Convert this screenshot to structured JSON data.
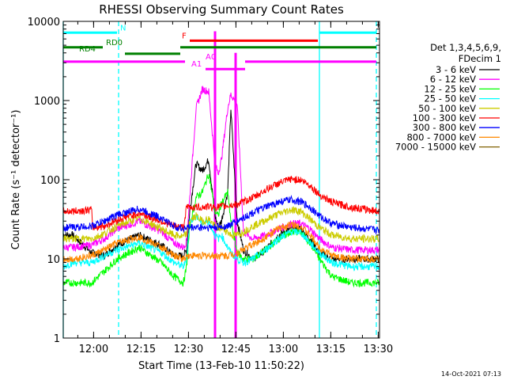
{
  "chart_data": {
    "type": "line",
    "title": "RHESSI Observing Summary Count Rates",
    "xlabel": "Start Time (13-Feb-10 11:50:22)",
    "ylabel": "Count Rate (s⁻¹ detector⁻¹)",
    "y_scale": "log",
    "ylim": [
      1,
      10000
    ],
    "xlim_minutes": [
      0,
      100
    ],
    "x_unit": "minutes since 11:50:22",
    "x_ticks": [
      {
        "label": "12:00",
        "value": 9.6
      },
      {
        "label": "12:15",
        "value": 24.6
      },
      {
        "label": "12:30",
        "value": 39.6
      },
      {
        "label": "12:45",
        "value": 54.6
      },
      {
        "label": "13:00",
        "value": 69.6
      },
      {
        "label": "13:15",
        "value": 84.6
      },
      {
        "label": "13:30",
        "value": 99.6
      }
    ],
    "y_ticks": [
      {
        "label": "1",
        "value": 1
      },
      {
        "label": "10",
        "value": 10
      },
      {
        "label": "100",
        "value": 100
      },
      {
        "label": "1000",
        "value": 1000
      },
      {
        "label": "10000",
        "value": 10000
      }
    ],
    "legend": {
      "placement": "right",
      "header1": "Det 1,3,4,5,6,9,",
      "header2": "FDecim 1"
    },
    "series": [
      {
        "name": "3 - 6 keV",
        "color": "#000000",
        "points": [
          [
            0,
            20
          ],
          [
            3,
            20
          ],
          [
            9,
            12
          ],
          [
            13,
            11
          ],
          [
            17,
            15
          ],
          [
            24,
            20
          ],
          [
            31,
            15
          ],
          [
            35,
            11
          ],
          [
            38,
            11
          ],
          [
            39,
            13
          ],
          [
            40,
            40
          ],
          [
            42,
            160
          ],
          [
            44,
            130
          ],
          [
            46,
            180
          ],
          [
            48,
            35
          ],
          [
            49,
            25
          ],
          [
            50,
            30
          ],
          [
            52,
            70
          ],
          [
            53,
            800
          ],
          [
            55,
            30
          ],
          [
            57,
            13
          ],
          [
            60,
            10
          ],
          [
            64,
            13
          ],
          [
            68,
            20
          ],
          [
            72,
            24
          ],
          [
            75,
            24
          ],
          [
            78,
            18
          ],
          [
            81,
            12
          ],
          [
            85,
            10
          ],
          [
            91,
            10
          ],
          [
            100,
            10
          ]
        ]
      },
      {
        "name": "6 - 12 keV",
        "color": "#ff00ff",
        "points": [
          [
            0,
            14
          ],
          [
            3,
            14
          ],
          [
            9,
            15
          ],
          [
            13,
            18
          ],
          [
            17,
            24
          ],
          [
            24,
            30
          ],
          [
            31,
            22
          ],
          [
            35,
            16
          ],
          [
            38,
            14
          ],
          [
            39,
            17
          ],
          [
            40,
            60
          ],
          [
            42,
            800
          ],
          [
            44,
            1400
          ],
          [
            46,
            1300
          ],
          [
            48,
            160
          ],
          [
            49,
            120
          ],
          [
            50,
            180
          ],
          [
            52,
            800
          ],
          [
            53,
            1200
          ],
          [
            55,
            900
          ],
          [
            57,
            22
          ],
          [
            60,
            18
          ],
          [
            64,
            20
          ],
          [
            68,
            24
          ],
          [
            72,
            28
          ],
          [
            75,
            28
          ],
          [
            78,
            24
          ],
          [
            81,
            18
          ],
          [
            85,
            14
          ],
          [
            91,
            13
          ],
          [
            100,
            13
          ]
        ]
      },
      {
        "name": "12 - 25 keV",
        "color": "#00ff00",
        "points": [
          [
            0,
            5
          ],
          [
            3,
            5
          ],
          [
            9,
            5
          ],
          [
            13,
            7
          ],
          [
            17,
            10
          ],
          [
            24,
            14
          ],
          [
            31,
            9
          ],
          [
            35,
            6
          ],
          [
            38,
            5
          ],
          [
            39,
            8
          ],
          [
            40,
            25
          ],
          [
            42,
            60
          ],
          [
            44,
            70
          ],
          [
            46,
            120
          ],
          [
            48,
            40
          ],
          [
            49,
            35
          ],
          [
            50,
            50
          ],
          [
            52,
            70
          ],
          [
            53,
            30
          ],
          [
            55,
            12
          ],
          [
            57,
            10
          ],
          [
            60,
            10
          ],
          [
            64,
            13
          ],
          [
            68,
            18
          ],
          [
            72,
            22
          ],
          [
            75,
            22
          ],
          [
            78,
            16
          ],
          [
            81,
            10
          ],
          [
            85,
            6
          ],
          [
            91,
            5
          ],
          [
            100,
            5
          ]
        ]
      },
      {
        "name": "25 - 50 keV",
        "color": "#00ffff",
        "points": [
          [
            0,
            8
          ],
          [
            3,
            9
          ],
          [
            9,
            9
          ],
          [
            13,
            11
          ],
          [
            17,
            13
          ],
          [
            24,
            16
          ],
          [
            31,
            12
          ],
          [
            35,
            9
          ],
          [
            38,
            8
          ],
          [
            39,
            10
          ],
          [
            40,
            30
          ],
          [
            42,
            35
          ],
          [
            44,
            28
          ],
          [
            46,
            30
          ],
          [
            48,
            20
          ],
          [
            49,
            18
          ],
          [
            50,
            20
          ],
          [
            52,
            14
          ],
          [
            53,
            12
          ],
          [
            55,
            10
          ],
          [
            57,
            9
          ],
          [
            60,
            10
          ],
          [
            64,
            13
          ],
          [
            68,
            18
          ],
          [
            72,
            22
          ],
          [
            75,
            22
          ],
          [
            78,
            16
          ],
          [
            81,
            12
          ],
          [
            85,
            9
          ],
          [
            91,
            8
          ],
          [
            100,
            8
          ]
        ]
      },
      {
        "name": "50 - 100 keV",
        "color": "#cccc00",
        "points": [
          [
            0,
            18
          ],
          [
            3,
            18
          ],
          [
            9,
            18
          ],
          [
            13,
            21
          ],
          [
            17,
            26
          ],
          [
            24,
            33
          ],
          [
            31,
            24
          ],
          [
            35,
            20
          ],
          [
            38,
            19
          ],
          [
            39,
            21
          ],
          [
            40,
            30
          ],
          [
            42,
            35
          ],
          [
            44,
            30
          ],
          [
            46,
            32
          ],
          [
            48,
            26
          ],
          [
            49,
            24
          ],
          [
            50,
            25
          ],
          [
            52,
            22
          ],
          [
            53,
            20
          ],
          [
            55,
            20
          ],
          [
            57,
            22
          ],
          [
            60,
            26
          ],
          [
            64,
            31
          ],
          [
            68,
            37
          ],
          [
            72,
            42
          ],
          [
            75,
            40
          ],
          [
            78,
            32
          ],
          [
            81,
            25
          ],
          [
            85,
            20
          ],
          [
            91,
            18
          ],
          [
            100,
            18
          ]
        ]
      },
      {
        "name": "100 - 300 keV",
        "color": "#ff0000",
        "points": [
          [
            0,
            40
          ],
          [
            3,
            40
          ],
          [
            9,
            42
          ],
          [
            9.2,
            25
          ],
          [
            13,
            26
          ],
          [
            17,
            31
          ],
          [
            24,
            38
          ],
          [
            31,
            30
          ],
          [
            35,
            26
          ],
          [
            38,
            25
          ],
          [
            39,
            45
          ],
          [
            44,
            45
          ],
          [
            46,
            46
          ],
          [
            48,
            45
          ],
          [
            52,
            47
          ],
          [
            55,
            49
          ],
          [
            58,
            55
          ],
          [
            61,
            62
          ],
          [
            64,
            75
          ],
          [
            68,
            90
          ],
          [
            72,
            102
          ],
          [
            75,
            100
          ],
          [
            78,
            85
          ],
          [
            81,
            65
          ],
          [
            85,
            52
          ],
          [
            91,
            45
          ],
          [
            100,
            40
          ]
        ]
      },
      {
        "name": "300 - 800 keV",
        "color": "#0000ff",
        "points": [
          [
            0,
            25
          ],
          [
            3,
            25
          ],
          [
            9,
            26
          ],
          [
            13,
            30
          ],
          [
            17,
            36
          ],
          [
            24,
            43
          ],
          [
            31,
            33
          ],
          [
            35,
            26
          ],
          [
            38,
            24
          ],
          [
            39,
            25
          ],
          [
            44,
            25
          ],
          [
            48,
            25
          ],
          [
            52,
            26
          ],
          [
            55,
            30
          ],
          [
            58,
            35
          ],
          [
            61,
            40
          ],
          [
            64,
            45
          ],
          [
            68,
            52
          ],
          [
            72,
            56
          ],
          [
            75,
            53
          ],
          [
            78,
            45
          ],
          [
            81,
            35
          ],
          [
            85,
            28
          ],
          [
            91,
            25
          ],
          [
            100,
            23
          ]
        ]
      },
      {
        "name": "800 - 7000 keV",
        "color": "#ff8800",
        "points": [
          [
            0,
            10
          ],
          [
            3,
            10
          ],
          [
            9,
            11
          ],
          [
            13,
            13
          ],
          [
            17,
            16
          ],
          [
            24,
            19
          ],
          [
            31,
            14
          ],
          [
            35,
            11
          ],
          [
            38,
            10
          ],
          [
            39,
            11
          ],
          [
            44,
            11
          ],
          [
            48,
            11
          ],
          [
            52,
            11
          ],
          [
            55,
            12
          ],
          [
            58,
            14
          ],
          [
            61,
            16
          ],
          [
            64,
            19
          ],
          [
            68,
            24
          ],
          [
            72,
            27
          ],
          [
            75,
            26
          ],
          [
            78,
            20
          ],
          [
            81,
            14
          ],
          [
            85,
            11
          ],
          [
            91,
            10
          ],
          [
            100,
            10
          ]
        ]
      },
      {
        "name": "7000 - 15000 keV",
        "color": "#806000",
        "points": []
      }
    ],
    "flag_bars": [
      {
        "label": "N",
        "color": "#00ffff",
        "y": 7200,
        "segments": [
          [
            0,
            17
          ]
        ],
        "label_at": 18
      },
      {
        "label": "N",
        "color": "#00ffff",
        "y": 7200,
        "segments": [
          [
            81,
            99
          ]
        ],
        "label_at": null
      },
      {
        "label": "RD0",
        "color": "#008000",
        "y": 4700,
        "segments": [
          [
            0,
            12.5
          ],
          [
            37,
            99
          ]
        ],
        "label_at": 13.5
      },
      {
        "label": "RD4",
        "color": "#008000",
        "y": 3900,
        "segments": [
          [
            19.5,
            37
          ]
        ],
        "label_at": 5
      },
      {
        "label": "F",
        "color": "#ff0000",
        "y": 5700,
        "segments": [
          [
            40,
            80.5
          ]
        ],
        "label_at": 37.5
      },
      {
        "label": "A0",
        "color": "#ff00ff",
        "y": 3100,
        "segments": [
          [
            0,
            38.5
          ],
          [
            57.5,
            99
          ]
        ],
        "label_at": 45
      },
      {
        "label": "A1",
        "color": "#ff00ff",
        "y": 2500,
        "segments": [
          [
            45,
            57.5
          ]
        ],
        "label_at": 40.5
      }
    ],
    "vertical_markers": [
      {
        "type": "solid",
        "color": "#00ffff",
        "x": 0
      },
      {
        "type": "dashed",
        "color": "#00ffff",
        "x": 17.5
      },
      {
        "type": "solid",
        "color": "#00ffff",
        "x": 81
      },
      {
        "type": "dashed",
        "color": "#00ffff",
        "x": 99
      },
      {
        "type": "solid",
        "color": "#ff00ff",
        "x": 48,
        "y_top": 7500
      },
      {
        "type": "solid",
        "color": "#ff00ff",
        "x": 54.5,
        "y_top": 4000
      }
    ],
    "timestamp": "14-Oct-2021 07:13"
  }
}
